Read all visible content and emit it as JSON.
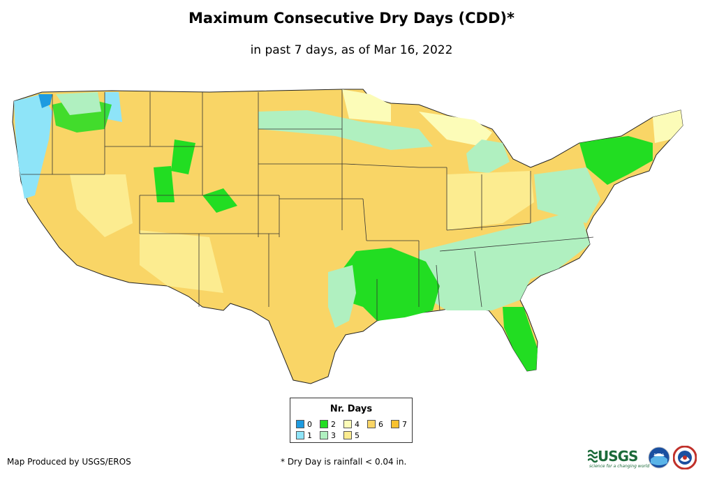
{
  "title": "Maximum Consecutive Dry Days (CDD)*",
  "subtitle": "in past 7 days, as of Mar 16, 2022",
  "legend": {
    "title": "Nr. Days",
    "items": [
      {
        "label": "0",
        "color": "#1e9be0"
      },
      {
        "label": "1",
        "color": "#8ee4f8"
      },
      {
        "label": "2",
        "color": "#22dd22"
      },
      {
        "label": "3",
        "color": "#b0f0c0"
      },
      {
        "label": "4",
        "color": "#fcfcb8"
      },
      {
        "label": "5",
        "color": "#fcec90"
      },
      {
        "label": "6",
        "color": "#f9d566"
      },
      {
        "label": "7",
        "color": "#f8c230"
      }
    ]
  },
  "footer": {
    "credit": "Map Produced by USGS/EROS",
    "note": "* Dry Day is rainfall < 0.04 in."
  },
  "logos": {
    "usgs": "USGS",
    "usgs_tagline": "science for a changing world",
    "noaa": "NOAA"
  }
}
